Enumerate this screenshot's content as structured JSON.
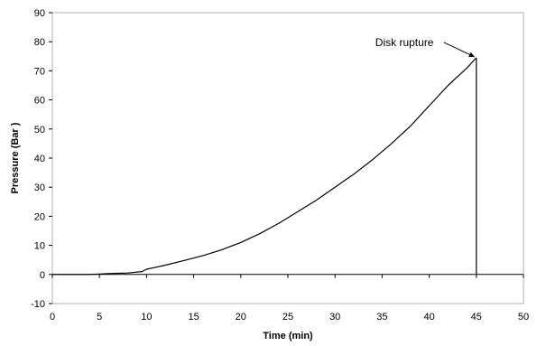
{
  "chart_data": {
    "type": "line",
    "title": "",
    "xlabel": "Time (min)",
    "ylabel": "Pressure (Bar )",
    "xlim": [
      0,
      50
    ],
    "ylim": [
      -10,
      90
    ],
    "x_ticks": [
      "0",
      "5",
      "10",
      "15",
      "20",
      "25",
      "30",
      "35",
      "40",
      "45",
      "50"
    ],
    "y_ticks": [
      "-10",
      "0",
      "10",
      "20",
      "30",
      "40",
      "50",
      "60",
      "70",
      "80",
      "90"
    ],
    "grid": false,
    "legend": "none",
    "line_color": "#000000",
    "series": [
      {
        "x": [
          0,
          2,
          4,
          6,
          8,
          9.5,
          10,
          11,
          12,
          14,
          16,
          18,
          20,
          22,
          24,
          26,
          28,
          30,
          32,
          34,
          36,
          38,
          40,
          42,
          44,
          45
        ],
        "y": [
          0,
          0,
          0,
          0.3,
          0.5,
          1,
          1.8,
          2.5,
          3.2,
          4.8,
          6.5,
          8.5,
          11,
          14,
          17.5,
          21.5,
          25.5,
          30,
          34.5,
          39.5,
          45,
          51,
          58,
          65,
          71,
          74.5
        ]
      }
    ],
    "rupture": {
      "x": 45,
      "y_top": 74.5,
      "y_bottom": 0
    },
    "annotations": [
      {
        "text": "Disk rupture",
        "x": 45,
        "y": 74.5
      }
    ]
  }
}
